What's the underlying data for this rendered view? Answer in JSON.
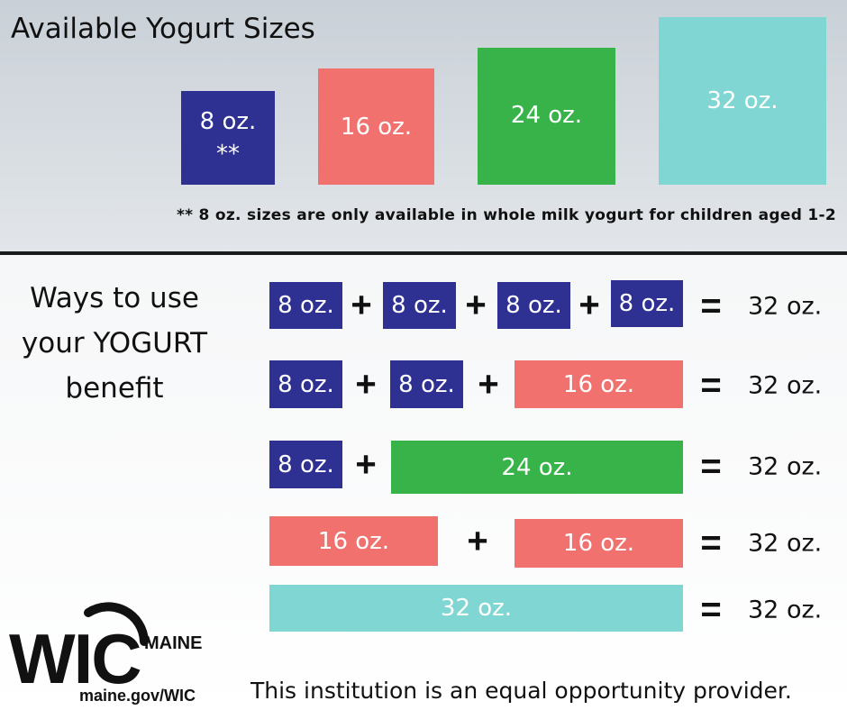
{
  "header": {
    "title": "Available Yogurt Sizes"
  },
  "sizes": [
    {
      "label": "8 oz.",
      "note": "**"
    },
    {
      "label": "16 oz."
    },
    {
      "label": "24 oz."
    },
    {
      "label": "32 oz."
    }
  ],
  "footnote": "** 8 oz. sizes are only available in whole milk yogurt for children aged 1-2",
  "section": {
    "title_lines": [
      "Ways to use",
      "your YOGURT",
      "benefit"
    ]
  },
  "combinations": [
    {
      "items": [
        "8 oz.",
        "8 oz.",
        "8 oz.",
        "8 oz."
      ],
      "operators": [
        "+",
        "+",
        "+"
      ],
      "equals": "=",
      "total": "32 oz."
    },
    {
      "items": [
        "8 oz.",
        "8 oz.",
        "16 oz."
      ],
      "operators": [
        "+",
        "+"
      ],
      "equals": "=",
      "total": "32 oz."
    },
    {
      "items": [
        "8 oz.",
        "24 oz."
      ],
      "operators": [
        "+"
      ],
      "equals": "=",
      "total": "32 oz."
    },
    {
      "items": [
        "16 oz.",
        "16 oz."
      ],
      "operators": [
        "+"
      ],
      "equals": "=",
      "total": "32 oz."
    },
    {
      "items": [
        "32 oz."
      ],
      "equals": "=",
      "total": "32 oz."
    }
  ],
  "logo": {
    "brand": "WIC",
    "state": "MAINE",
    "url": "maine.gov/WIC"
  },
  "footer": "This institution is an equal opportunity provider."
}
